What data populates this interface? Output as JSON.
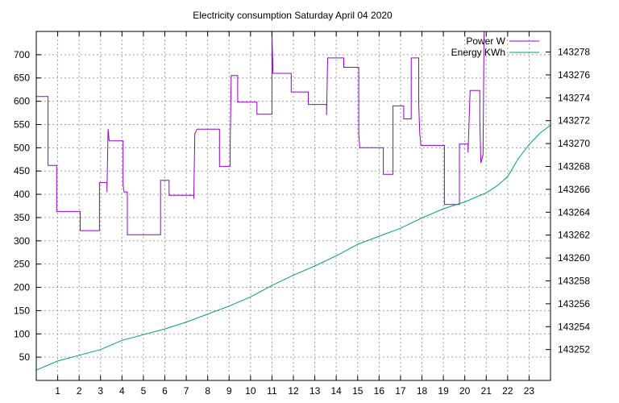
{
  "chart_data": {
    "type": "line",
    "title": "Electricity consumption Saturday April 04 2020",
    "grid": true,
    "legend_placement": "top-right",
    "x": {
      "range": [
        0,
        24
      ],
      "ticks": [
        1,
        2,
        3,
        4,
        5,
        6,
        7,
        8,
        9,
        10,
        11,
        12,
        13,
        14,
        15,
        16,
        17,
        18,
        19,
        20,
        21,
        22,
        23
      ]
    },
    "y_left": {
      "range": [
        0,
        750
      ],
      "ticks": [
        50,
        100,
        150,
        200,
        250,
        300,
        350,
        400,
        450,
        500,
        550,
        600,
        650,
        700
      ]
    },
    "y_right": {
      "range": [
        143249.3,
        143279.8
      ],
      "ticks": [
        143252,
        143254,
        143256,
        143258,
        143260,
        143262,
        143264,
        143266,
        143268,
        143270,
        143272,
        143274,
        143276,
        143278
      ]
    },
    "series": [
      {
        "name": "Power W",
        "color": "#9400d3",
        "axis": "left",
        "step": true,
        "points": [
          [
            0,
            610
          ],
          [
            0.55,
            610
          ],
          [
            0.55,
            462
          ],
          [
            0.95,
            462
          ],
          [
            0.95,
            363
          ],
          [
            2.05,
            363
          ],
          [
            2.05,
            322
          ],
          [
            2.95,
            322
          ],
          [
            2.95,
            425
          ],
          [
            3.3,
            425
          ],
          [
            3.3,
            405
          ],
          [
            3.35,
            540
          ],
          [
            3.4,
            515
          ],
          [
            4.05,
            515
          ],
          [
            4.05,
            420
          ],
          [
            4.1,
            405
          ],
          [
            4.25,
            405
          ],
          [
            4.25,
            313
          ],
          [
            5.8,
            313
          ],
          [
            5.8,
            430
          ],
          [
            6.2,
            430
          ],
          [
            6.2,
            398
          ],
          [
            7.35,
            398
          ],
          [
            7.35,
            390
          ],
          [
            7.4,
            530
          ],
          [
            7.5,
            540
          ],
          [
            8.55,
            540
          ],
          [
            8.55,
            460
          ],
          [
            9.05,
            460
          ],
          [
            9.05,
            510
          ],
          [
            9.1,
            655
          ],
          [
            9.4,
            655
          ],
          [
            9.4,
            598
          ],
          [
            10.3,
            598
          ],
          [
            10.3,
            572
          ],
          [
            11,
            572
          ],
          [
            11,
            750
          ],
          [
            11.05,
            660
          ],
          [
            11.9,
            660
          ],
          [
            11.9,
            620
          ],
          [
            12.7,
            620
          ],
          [
            12.7,
            593
          ],
          [
            13.55,
            593
          ],
          [
            13.55,
            570
          ],
          [
            13.6,
            693
          ],
          [
            14.35,
            693
          ],
          [
            14.35,
            673
          ],
          [
            15.05,
            673
          ],
          [
            15.05,
            530
          ],
          [
            15.1,
            500
          ],
          [
            16.2,
            500
          ],
          [
            16.2,
            443
          ],
          [
            16.65,
            443
          ],
          [
            16.65,
            590
          ],
          [
            17.15,
            590
          ],
          [
            17.15,
            562
          ],
          [
            17.5,
            562
          ],
          [
            17.5,
            693
          ],
          [
            17.85,
            693
          ],
          [
            17.85,
            595
          ],
          [
            17.9,
            530
          ],
          [
            17.95,
            505
          ],
          [
            19.05,
            505
          ],
          [
            19.05,
            378
          ],
          [
            19.75,
            378
          ],
          [
            19.75,
            508
          ],
          [
            20.15,
            508
          ],
          [
            20.15,
            490
          ],
          [
            20.25,
            623
          ],
          [
            20.7,
            623
          ],
          [
            20.7,
            560
          ],
          [
            20.75,
            467
          ],
          [
            20.85,
            485
          ],
          [
            20.9,
            750
          ],
          [
            21.2,
            750
          ]
        ]
      },
      {
        "name": "Energy KWh",
        "color": "#009e73",
        "axis": "right",
        "step": false,
        "points": [
          [
            0,
            143250.2
          ],
          [
            1,
            143251
          ],
          [
            2,
            143251.5
          ],
          [
            3,
            143252
          ],
          [
            4,
            143252.8
          ],
          [
            5,
            143253.3
          ],
          [
            6,
            143253.8
          ],
          [
            7,
            143254.4
          ],
          [
            8,
            143255.1
          ],
          [
            9,
            143255.8
          ],
          [
            10,
            143256.6
          ],
          [
            11,
            143257.6
          ],
          [
            12,
            143258.5
          ],
          [
            13,
            143259.3
          ],
          [
            14,
            143260.2
          ],
          [
            15,
            143261.2
          ],
          [
            16,
            143261.9
          ],
          [
            17,
            143262.6
          ],
          [
            18,
            143263.5
          ],
          [
            19,
            143264.3
          ],
          [
            20,
            143264.9
          ],
          [
            21,
            143265.7
          ],
          [
            21.5,
            143266.3
          ],
          [
            22,
            143267.1
          ],
          [
            22.5,
            143268.7
          ],
          [
            23,
            143269.9
          ],
          [
            23.5,
            143270.9
          ],
          [
            24,
            143271.6
          ]
        ]
      }
    ]
  }
}
